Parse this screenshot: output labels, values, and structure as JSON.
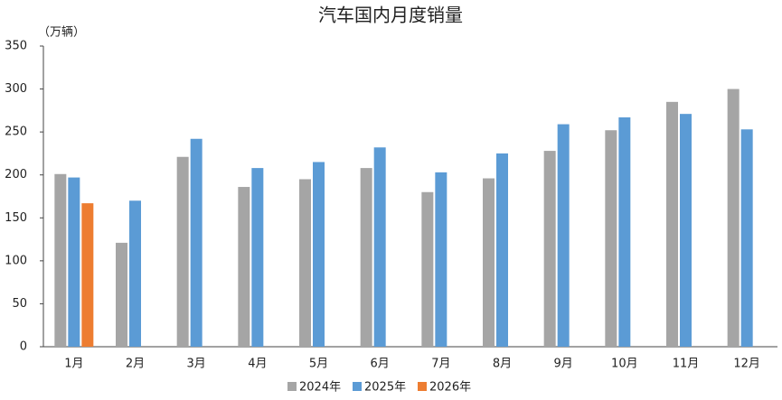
{
  "chart_data": {
    "type": "bar",
    "title": "汽车国内月度销量",
    "y_label": "（万辆）",
    "categories": [
      "1月",
      "2月",
      "3月",
      "4月",
      "5月",
      "6月",
      "7月",
      "8月",
      "9月",
      "10月",
      "11月",
      "12月"
    ],
    "series": [
      {
        "name": "2024年",
        "color": "#a5a5a5",
        "values": [
          201,
          121,
          221,
          186,
          195,
          208,
          180,
          196,
          228,
          252,
          285,
          300
        ]
      },
      {
        "name": "2025年",
        "color": "#5b9bd5",
        "values": [
          197,
          170,
          242,
          208,
          215,
          232,
          203,
          225,
          259,
          267,
          271,
          253
        ]
      },
      {
        "name": "2026年",
        "color": "#ed7d31",
        "values": [
          167,
          null,
          null,
          null,
          null,
          null,
          null,
          null,
          null,
          null,
          null,
          null
        ]
      }
    ],
    "ylim": [
      0,
      350
    ],
    "yticks": [
      0,
      50,
      100,
      150,
      200,
      250,
      300,
      350
    ],
    "grid": false,
    "legend": "bottom"
  }
}
